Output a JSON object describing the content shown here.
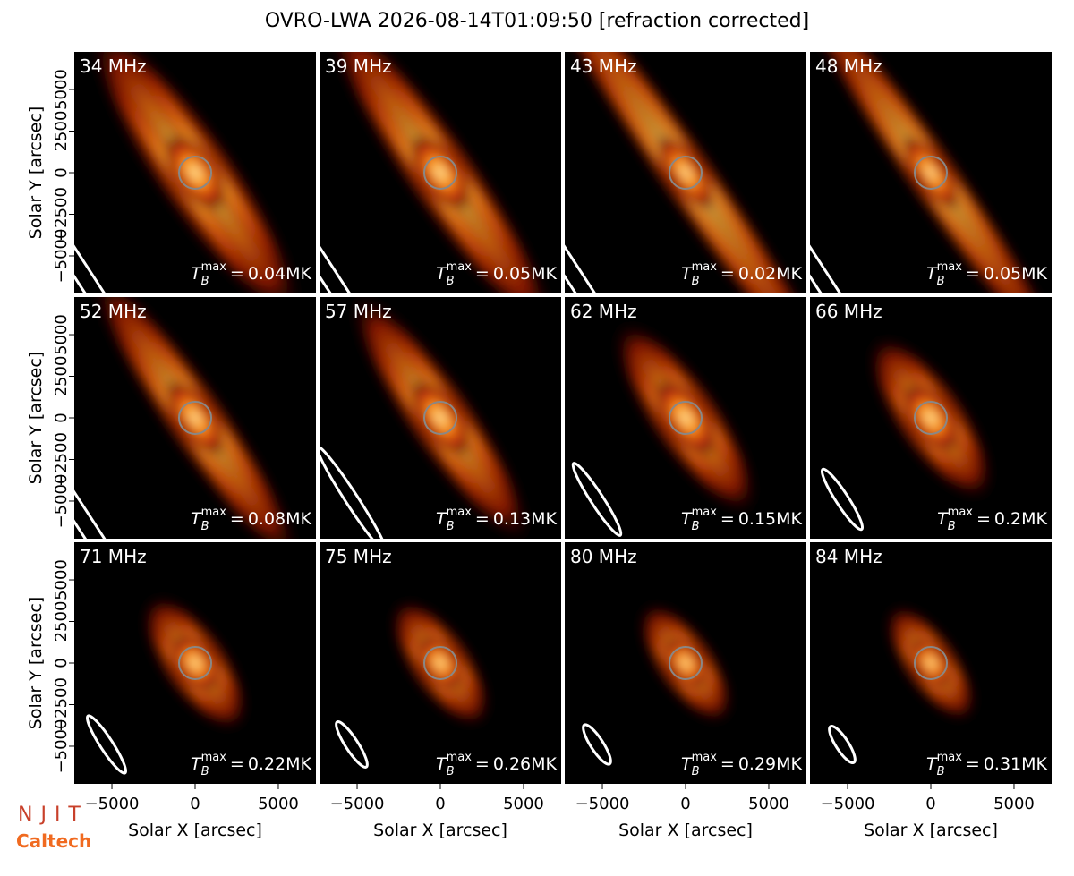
{
  "figure": {
    "title": "OVRO-LWA 2026-08-14T01:09:50 [refraction corrected]",
    "x_label": "Solar X [arcsec]",
    "y_label": "Solar Y [arcsec]",
    "xlim": [
      -7260,
      7260
    ],
    "ylim": [
      -7260,
      7260
    ],
    "xticks": [
      {
        "value": -5000,
        "label": "−5000"
      },
      0,
      5000
    ],
    "yticks": [
      {
        "value": -5000,
        "label": "−5000"
      },
      {
        "value": -2500,
        "label": "−2500"
      },
      0,
      2500,
      5000
    ],
    "tmax_symbol": {
      "main": "T",
      "sub": "B",
      "sup": "max",
      "eq": "="
    },
    "panels": [
      {
        "label": "34 MHz",
        "tmax": "0.04MK"
      },
      {
        "label": "39 MHz",
        "tmax": "0.05MK"
      },
      {
        "label": "43 MHz",
        "tmax": "0.02MK"
      },
      {
        "label": "48 MHz",
        "tmax": "0.05MK"
      },
      {
        "label": "52 MHz",
        "tmax": "0.08MK"
      },
      {
        "label": "57 MHz",
        "tmax": "0.13MK"
      },
      {
        "label": "62 MHz",
        "tmax": "0.15MK"
      },
      {
        "label": "66 MHz",
        "tmax": "0.2MK"
      },
      {
        "label": "71 MHz",
        "tmax": "0.22MK"
      },
      {
        "label": "75 MHz",
        "tmax": "0.26MK"
      },
      {
        "label": "80 MHz",
        "tmax": "0.29MK"
      },
      {
        "label": "84 MHz",
        "tmax": "0.31MK"
      }
    ],
    "logos": [
      "NJIT",
      "Caltech"
    ]
  }
}
